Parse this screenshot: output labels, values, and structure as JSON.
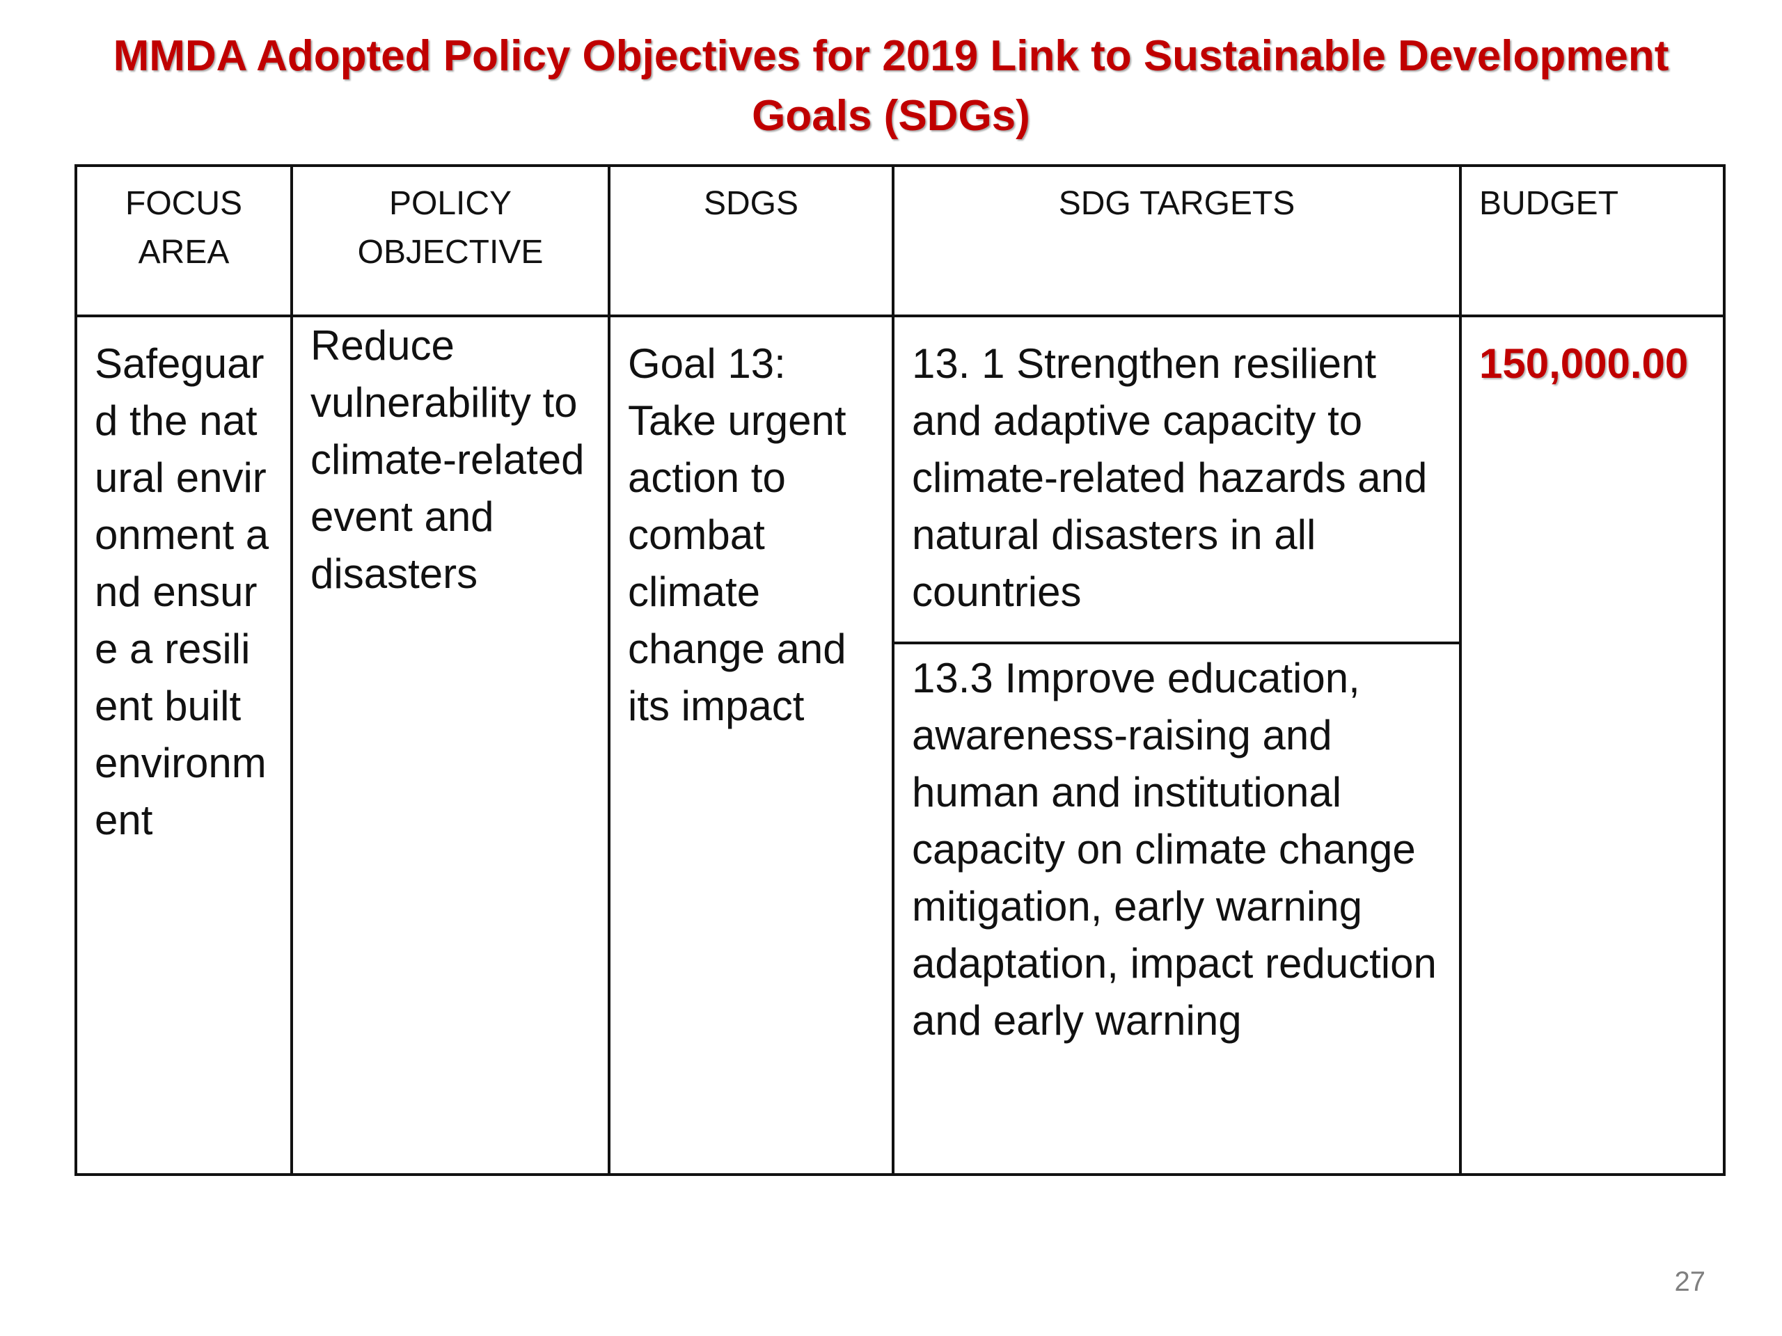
{
  "title": "MMDA Adopted Policy Objectives for 2019 Link to Sustainable Development Goals (SDGs)",
  "table": {
    "headers": {
      "focus_area": "FOCUS AREA",
      "policy_objective": "POLICY OBJECTIVE",
      "sdgs": "SDGS",
      "sdg_targets": "SDG TARGETS",
      "budget": "BUDGET"
    },
    "row": {
      "focus_area": "Safeguard the natural environment and ensure a resilient built environment",
      "policy_objective": "Reduce vulnerability to climate-related event and disasters",
      "sdgs": "Goal 13: Take urgent action to combat climate change and its impact",
      "sdg_targets": [
        "13. 1 Strengthen resilient and adaptive capacity to climate-related hazards and natural disasters in all countries",
        "13.3 Improve education, awareness-raising and human and institutional capacity on climate change mitigation, early warning adaptation, impact reduction and early warning"
      ],
      "budget": "150,000.00"
    }
  },
  "page_number": "27",
  "colors": {
    "title": "#c00000",
    "budget": "#c00000",
    "border": "#111111",
    "page_number": "#7f7f7f"
  }
}
